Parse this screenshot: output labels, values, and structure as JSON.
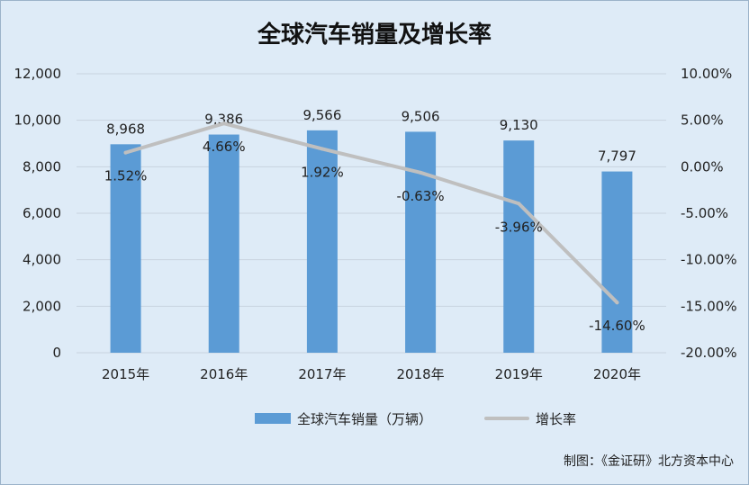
{
  "chart_data": {
    "type": "bar",
    "title": "全球汽车销量及增长率",
    "categories": [
      "2015年",
      "2016年",
      "2017年",
      "2018年",
      "2019年",
      "2020年"
    ],
    "series": [
      {
        "name": "全球汽车销量（万辆）",
        "type": "bar",
        "axis": "left",
        "color": "#5b9bd5",
        "values": [
          8968,
          9386,
          9566,
          9506,
          9130,
          7797
        ],
        "labels": [
          "8,968",
          "9,386",
          "9,566",
          "9,506",
          "9,130",
          "7,797"
        ]
      },
      {
        "name": "增长率",
        "type": "line",
        "axis": "right",
        "color": "#bfbfbf",
        "values": [
          1.52,
          4.66,
          1.92,
          -0.63,
          -3.96,
          -14.6
        ],
        "labels": [
          "1.52%",
          "4.66%",
          "1.92%",
          "-0.63%",
          "-3.96%",
          "-14.60%"
        ]
      }
    ],
    "left_axis": {
      "ylim": [
        0,
        12000
      ],
      "ticks": [
        0,
        2000,
        4000,
        6000,
        8000,
        10000,
        12000
      ],
      "tick_labels": [
        "0",
        "2,000",
        "4,000",
        "6,000",
        "8,000",
        "10,000",
        "12,000"
      ]
    },
    "right_axis": {
      "ylim": [
        -20,
        10
      ],
      "ticks": [
        -20,
        -15,
        -10,
        -5,
        0,
        5,
        10
      ],
      "tick_labels": [
        "-20.00%",
        "-15.00%",
        "-10.00%",
        "-5.00%",
        "0.00%",
        "5.00%",
        "10.00%"
      ]
    },
    "grid": true,
    "legend_position": "bottom",
    "background": "#deebf7"
  },
  "credit": "制图：《金证研》北方资本中心"
}
